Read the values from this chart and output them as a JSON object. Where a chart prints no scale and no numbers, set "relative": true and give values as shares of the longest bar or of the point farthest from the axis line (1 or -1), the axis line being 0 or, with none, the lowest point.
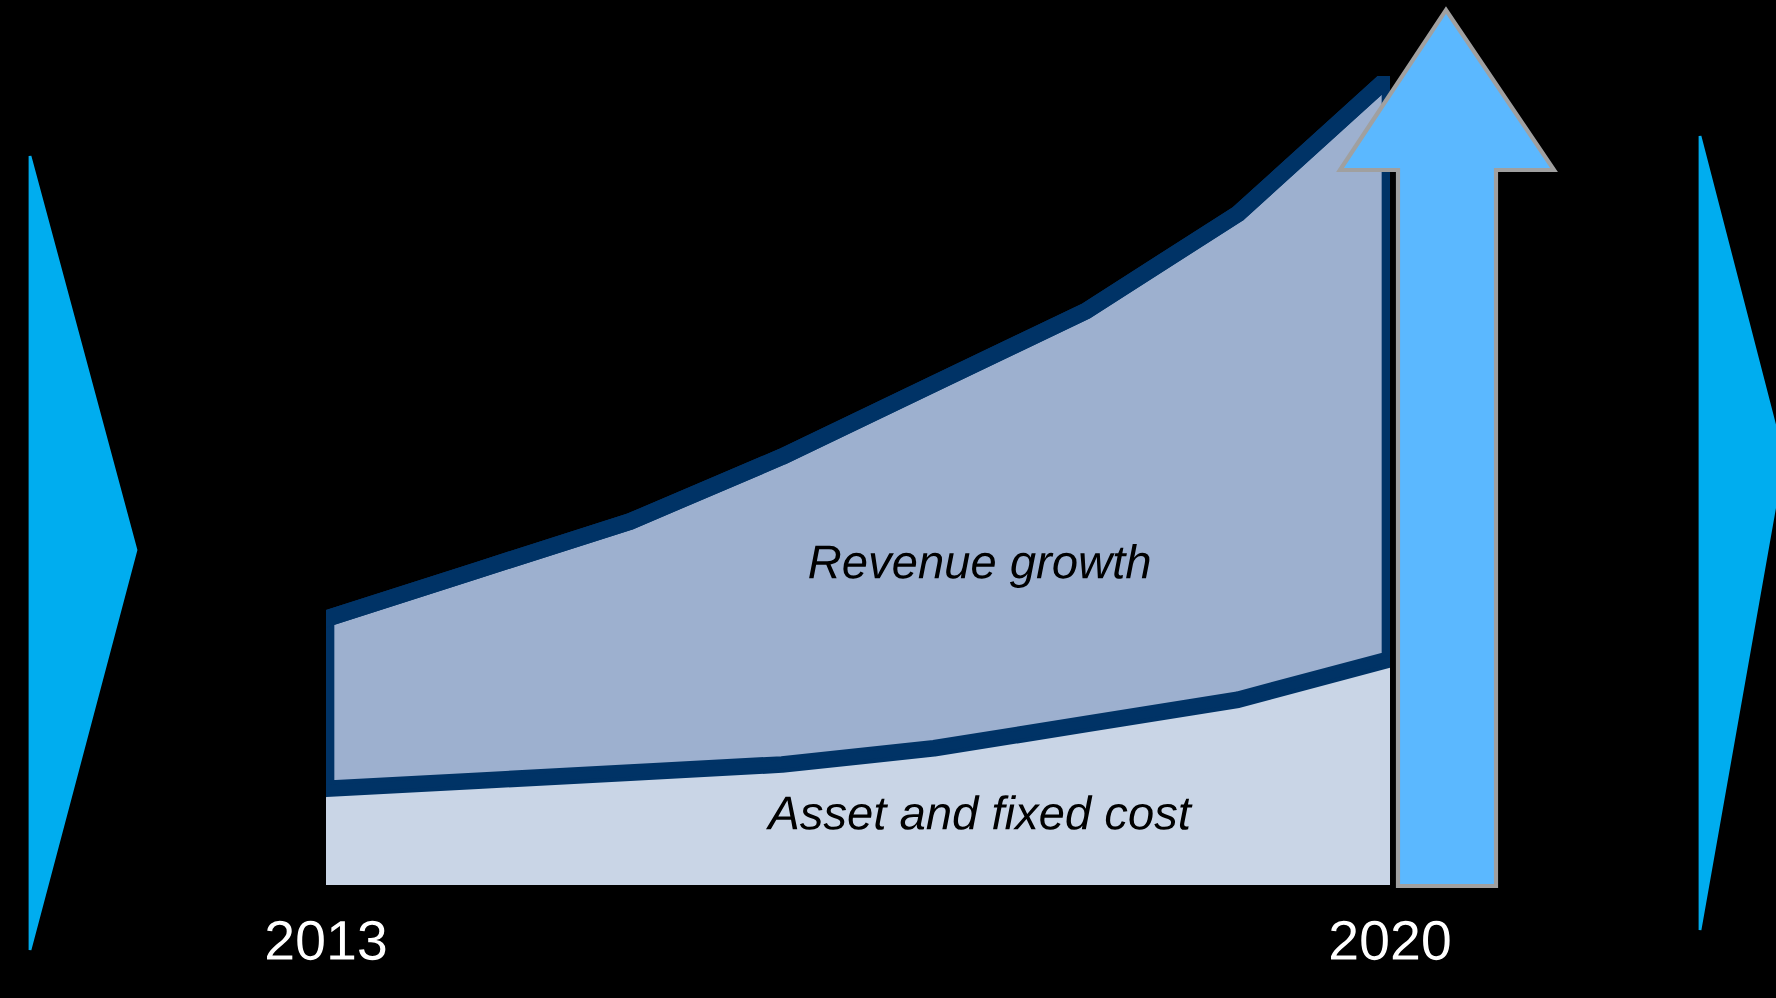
{
  "chart_data": {
    "type": "area",
    "stacked": true,
    "relative": true,
    "categories": [
      "2013",
      null,
      null,
      null,
      null,
      null,
      null,
      "2020"
    ],
    "series": [
      {
        "name": "Asset and fixed cost",
        "color": "#c9d5e6",
        "values": [
          0.12,
          0.13,
          0.14,
          0.15,
          0.17,
          0.2,
          0.23,
          0.28
        ]
      },
      {
        "name": "Revenue growth",
        "color": "#9db0cf",
        "values": [
          0.21,
          0.26,
          0.31,
          0.38,
          0.45,
          0.51,
          0.6,
          0.72
        ]
      }
    ]
  }
}
